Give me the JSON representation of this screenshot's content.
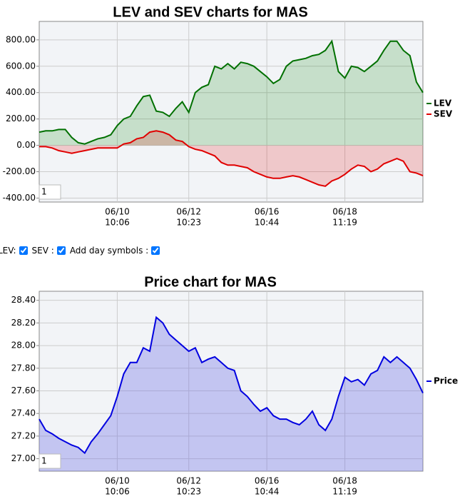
{
  "chart_data": [
    {
      "type": "line",
      "title": "LEV and SEV charts for MAS",
      "legend": "right",
      "grid": true,
      "fill_area": true,
      "categories": [
        null,
        null,
        null,
        null,
        null,
        null,
        null,
        null,
        null,
        null,
        null,
        null,
        [
          "06/10",
          "10:06"
        ],
        null,
        null,
        null,
        null,
        null,
        null,
        null,
        null,
        null,
        null,
        [
          "06/12",
          "10:23"
        ],
        null,
        null,
        null,
        null,
        null,
        null,
        null,
        null,
        null,
        null,
        null,
        [
          "06/16",
          "10:44"
        ],
        null,
        null,
        null,
        null,
        null,
        null,
        null,
        null,
        null,
        null,
        null,
        [
          "06/18",
          "11:19"
        ],
        null,
        null,
        null,
        null,
        null,
        null,
        null,
        null,
        null,
        null,
        null,
        null
      ],
      "ylim": [
        -430,
        940
      ],
      "yticks": [
        {
          "value": -400,
          "label": "-400.00"
        },
        {
          "value": -200,
          "label": "-200.00"
        },
        {
          "value": 0,
          "label": "0.00"
        },
        {
          "value": 200,
          "label": "200.00"
        },
        {
          "value": 400,
          "label": "400.00"
        },
        {
          "value": 600,
          "label": "600.00"
        },
        {
          "value": 800,
          "label": "800.00"
        }
      ],
      "zoom_input": "1",
      "series": [
        {
          "name": "LEV",
          "color": "#007000",
          "fill": "rgba(0,128,0,0.18)",
          "values": [
            100,
            110,
            110,
            120,
            120,
            60,
            20,
            10,
            30,
            50,
            60,
            80,
            150,
            200,
            220,
            300,
            370,
            380,
            260,
            250,
            220,
            280,
            330,
            250,
            400,
            440,
            460,
            600,
            580,
            620,
            580,
            630,
            620,
            600,
            560,
            520,
            470,
            500,
            600,
            640,
            650,
            660,
            680,
            690,
            720,
            790,
            560,
            510,
            600,
            590,
            560,
            600,
            640,
            720,
            790,
            790,
            720,
            680,
            480,
            400
          ]
        },
        {
          "name": "SEV",
          "color": "#e00000",
          "fill": "rgba(230,0,0,0.18)",
          "values": [
            -10,
            -10,
            -20,
            -40,
            -50,
            -60,
            -50,
            -40,
            -30,
            -20,
            -20,
            -20,
            -20,
            10,
            20,
            50,
            60,
            100,
            110,
            100,
            80,
            40,
            30,
            -10,
            -30,
            -40,
            -60,
            -80,
            -130,
            -150,
            -150,
            -160,
            -170,
            -200,
            -220,
            -240,
            -250,
            -250,
            -240,
            -230,
            -240,
            -260,
            -280,
            -300,
            -310,
            -270,
            -250,
            -220,
            -180,
            -150,
            -160,
            -200,
            -180,
            -140,
            -120,
            -100,
            -120,
            -200,
            -210,
            -230
          ]
        }
      ]
    },
    {
      "type": "line",
      "title": "Price chart for MAS",
      "legend": "right",
      "grid": true,
      "fill_area": true,
      "categories": [
        null,
        null,
        null,
        null,
        null,
        null,
        null,
        null,
        null,
        null,
        null,
        null,
        [
          "06/10",
          "10:06"
        ],
        null,
        null,
        null,
        null,
        null,
        null,
        null,
        null,
        null,
        null,
        [
          "06/12",
          "10:23"
        ],
        null,
        null,
        null,
        null,
        null,
        null,
        null,
        null,
        null,
        null,
        null,
        [
          "06/16",
          "10:44"
        ],
        null,
        null,
        null,
        null,
        null,
        null,
        null,
        null,
        null,
        null,
        null,
        [
          "06/18",
          "11:19"
        ],
        null,
        null,
        null,
        null,
        null,
        null,
        null,
        null,
        null,
        null,
        null,
        null
      ],
      "ylim": [
        26.89,
        28.48
      ],
      "yticks": [
        {
          "value": 27.0,
          "label": "27.00"
        },
        {
          "value": 27.2,
          "label": "27.20"
        },
        {
          "value": 27.4,
          "label": "27.40"
        },
        {
          "value": 27.6,
          "label": "27.60"
        },
        {
          "value": 27.8,
          "label": "27.80"
        },
        {
          "value": 28.0,
          "label": "28.00"
        },
        {
          "value": 28.2,
          "label": "28.20"
        },
        {
          "value": 28.4,
          "label": "28.40"
        }
      ],
      "zoom_input": "1",
      "series": [
        {
          "name": "Price",
          "color": "#0000e0",
          "fill": "rgba(110,110,230,0.35)",
          "values": [
            27.35,
            27.25,
            27.22,
            27.18,
            27.15,
            27.12,
            27.1,
            27.05,
            27.15,
            27.22,
            27.3,
            27.38,
            27.55,
            27.75,
            27.85,
            27.85,
            27.98,
            27.95,
            28.25,
            28.2,
            28.1,
            28.05,
            28.0,
            27.95,
            27.98,
            27.85,
            27.88,
            27.9,
            27.85,
            27.8,
            27.78,
            27.6,
            27.55,
            27.48,
            27.42,
            27.45,
            27.38,
            27.35,
            27.35,
            27.32,
            27.3,
            27.35,
            27.42,
            27.3,
            27.25,
            27.35,
            27.55,
            27.72,
            27.68,
            27.7,
            27.65,
            27.75,
            27.78,
            27.9,
            27.85,
            27.9,
            27.85,
            27.8,
            27.7,
            27.58
          ]
        }
      ]
    }
  ],
  "controls": [
    {
      "label": "LEV:",
      "checked": true
    },
    {
      "label": "SEV :",
      "checked": true
    },
    {
      "label": "Add day symbols :",
      "checked": true
    }
  ]
}
